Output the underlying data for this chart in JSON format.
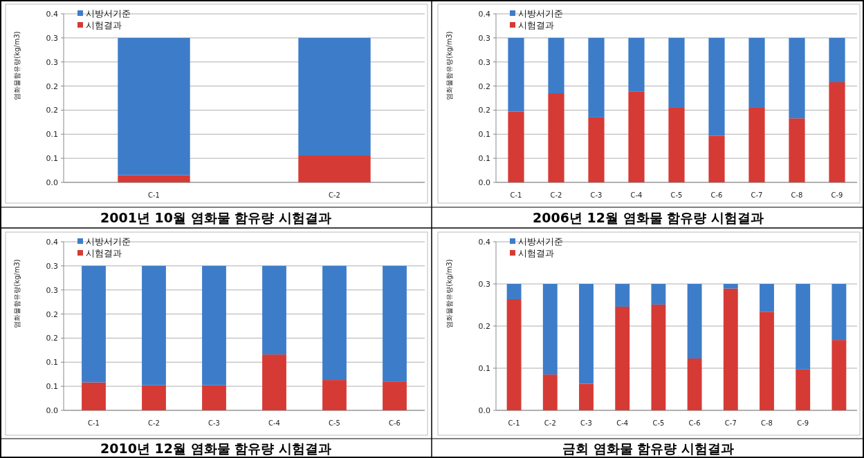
{
  "chart_data": [
    {
      "type": "bar",
      "title": "2001년 10월 염화물 함유량 시험결과",
      "ylabel": "염화물함유량(kg/m3)",
      "categories": [
        "C-1",
        "C-2"
      ],
      "stacked": true,
      "legend": "top left",
      "grid": "y",
      "ylim": [
        0,
        0.35
      ],
      "yticks": [
        {
          "value": 0,
          "label": "0.0"
        },
        {
          "value": 0.05,
          "label": "0.1"
        },
        0.1,
        {
          "value": 0.15,
          "label": "0.2"
        },
        0.2,
        {
          "value": 0.25,
          "label": "0.3"
        },
        0.3,
        {
          "value": 0.35,
          "label": "0.4"
        }
      ],
      "series": [
        {
          "name": "시험결과",
          "color": "#d63a35",
          "values": [
            0.015,
            0.056
          ]
        },
        {
          "name": "시방서기준",
          "color": "#3d7cc9",
          "values": [
            0.285,
            0.244
          ]
        }
      ]
    },
    {
      "type": "bar",
      "title": "2006년 12월 염화물 함유량 시험결과",
      "ylabel": "염화물함유량(kg/m3)",
      "categories": [
        "C-1",
        "C-2",
        "C-3",
        "C-4",
        "C-5",
        "C-6",
        "C-7",
        "C-8",
        "C-9"
      ],
      "stacked": true,
      "legend": "top left",
      "grid": "y",
      "ylim": [
        0,
        0.35
      ],
      "yticks": [
        {
          "value": 0,
          "label": "0.0"
        },
        {
          "value": 0.05,
          "label": "0.1"
        },
        0.1,
        {
          "value": 0.15,
          "label": "0.2"
        },
        0.2,
        {
          "value": 0.25,
          "label": "0.3"
        },
        0.3,
        {
          "value": 0.35,
          "label": "0.4"
        }
      ],
      "series": [
        {
          "name": "시험결과",
          "color": "#d63a35",
          "values": [
            0.147,
            0.185,
            0.135,
            0.189,
            0.155,
            0.097,
            0.155,
            0.133,
            0.208
          ]
        },
        {
          "name": "시방서기준",
          "color": "#3d7cc9",
          "values": [
            0.153,
            0.115,
            0.165,
            0.111,
            0.145,
            0.203,
            0.145,
            0.167,
            0.092
          ]
        }
      ]
    },
    {
      "type": "bar",
      "title": "2010년 12월 염화물 함유량 시험결과",
      "ylabel": "염화물함유량(kg/m3)",
      "categories": [
        "C-1",
        "C-2",
        "C-3",
        "C-4",
        "C-5",
        "C-6"
      ],
      "stacked": true,
      "legend": "top left",
      "grid": "y",
      "ylim": [
        0,
        0.35
      ],
      "yticks": [
        {
          "value": 0,
          "label": "0.0"
        },
        {
          "value": 0.05,
          "label": "0.1"
        },
        0.1,
        {
          "value": 0.15,
          "label": "0.2"
        },
        0.2,
        {
          "value": 0.25,
          "label": "0.3"
        },
        0.3,
        {
          "value": 0.35,
          "label": "0.4"
        }
      ],
      "series": [
        {
          "name": "시험결과",
          "color": "#d63a35",
          "values": [
            0.058,
            0.052,
            0.052,
            0.116,
            0.063,
            0.06
          ]
        },
        {
          "name": "시방서기준",
          "color": "#3d7cc9",
          "values": [
            0.242,
            0.248,
            0.248,
            0.184,
            0.237,
            0.24
          ]
        }
      ]
    },
    {
      "type": "bar",
      "title": "금회 염화물 함유량 시험결과",
      "ylabel": "염화물함유량(kg/m3)",
      "categories": [
        "C-1",
        "C-2",
        "C-3",
        "C-4",
        "C-5",
        "C-6",
        "C-7",
        "C-8",
        "C-9",
        null
      ],
      "stacked": true,
      "legend": "top left",
      "grid": "y",
      "ylim": [
        0,
        0.4
      ],
      "yticks": [
        {
          "value": 0,
          "label": "0.0"
        },
        0.1,
        0.2,
        0.3,
        0.4
      ],
      "series": [
        {
          "name": "시험결과",
          "color": "#d63a35",
          "values": [
            0.264,
            0.085,
            0.063,
            0.246,
            0.251,
            0.123,
            0.289,
            0.234,
            0.097,
            0.167
          ]
        },
        {
          "name": "시방서기준",
          "color": "#3d7cc9",
          "values": [
            0.036,
            0.215,
            0.237,
            0.054,
            0.049,
            0.177,
            0.011,
            0.066,
            0.203,
            0.133
          ]
        }
      ]
    }
  ]
}
